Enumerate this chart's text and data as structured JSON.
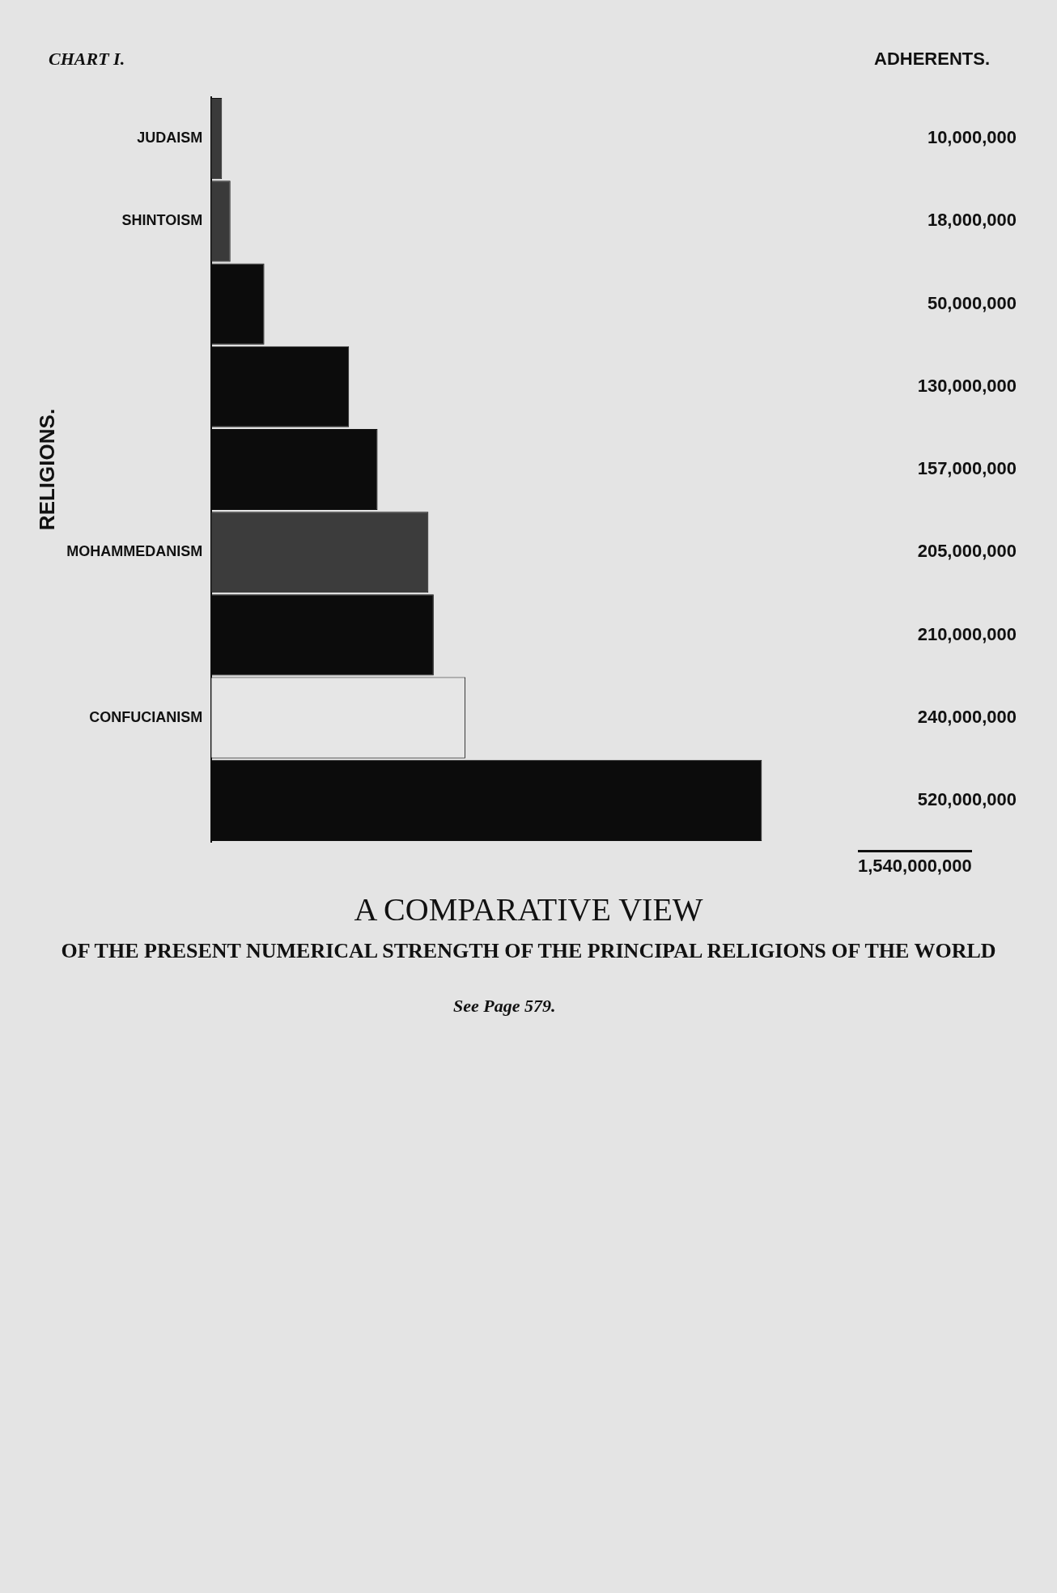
{
  "chart_data": {
    "type": "bar",
    "orientation": "horizontal",
    "title": "A COMPARATIVE VIEW",
    "subtitle": "OF THE PRESENT NUMERICAL STRENGTH OF THE PRINCIPAL RELIGIONS OF THE WORLD",
    "ylabel": "RELIGIONS.",
    "categories": [
      "JUDAISM",
      "SHINTOISM",
      null,
      null,
      null,
      "MOHAMMEDANISM",
      null,
      "CONFUCIANISM",
      null
    ],
    "values": [
      10000000,
      18000000,
      50000000,
      130000000,
      157000000,
      205000000,
      210000000,
      240000000,
      520000000
    ],
    "colors": [
      "#3a3a3a",
      "#3a3a3a",
      "#0c0c0c",
      "#0c0c0c",
      "#0c0c0c",
      "#3c3c3c",
      "#0c0c0c",
      "#e6e6e6",
      "#0c0c0c"
    ],
    "value_labels": [
      "10,000,000",
      "18,000,000",
      "50,000,000",
      "130,000,000",
      "157,000,000",
      "205,000,000",
      "210,000,000",
      "240,000,000",
      "520,000,000"
    ],
    "tick_labels": "y",
    "legend": false,
    "annotations": [
      "CHART I.",
      "ADHERENTS.",
      "1,540,000,000",
      "See Page 579."
    ]
  }
}
